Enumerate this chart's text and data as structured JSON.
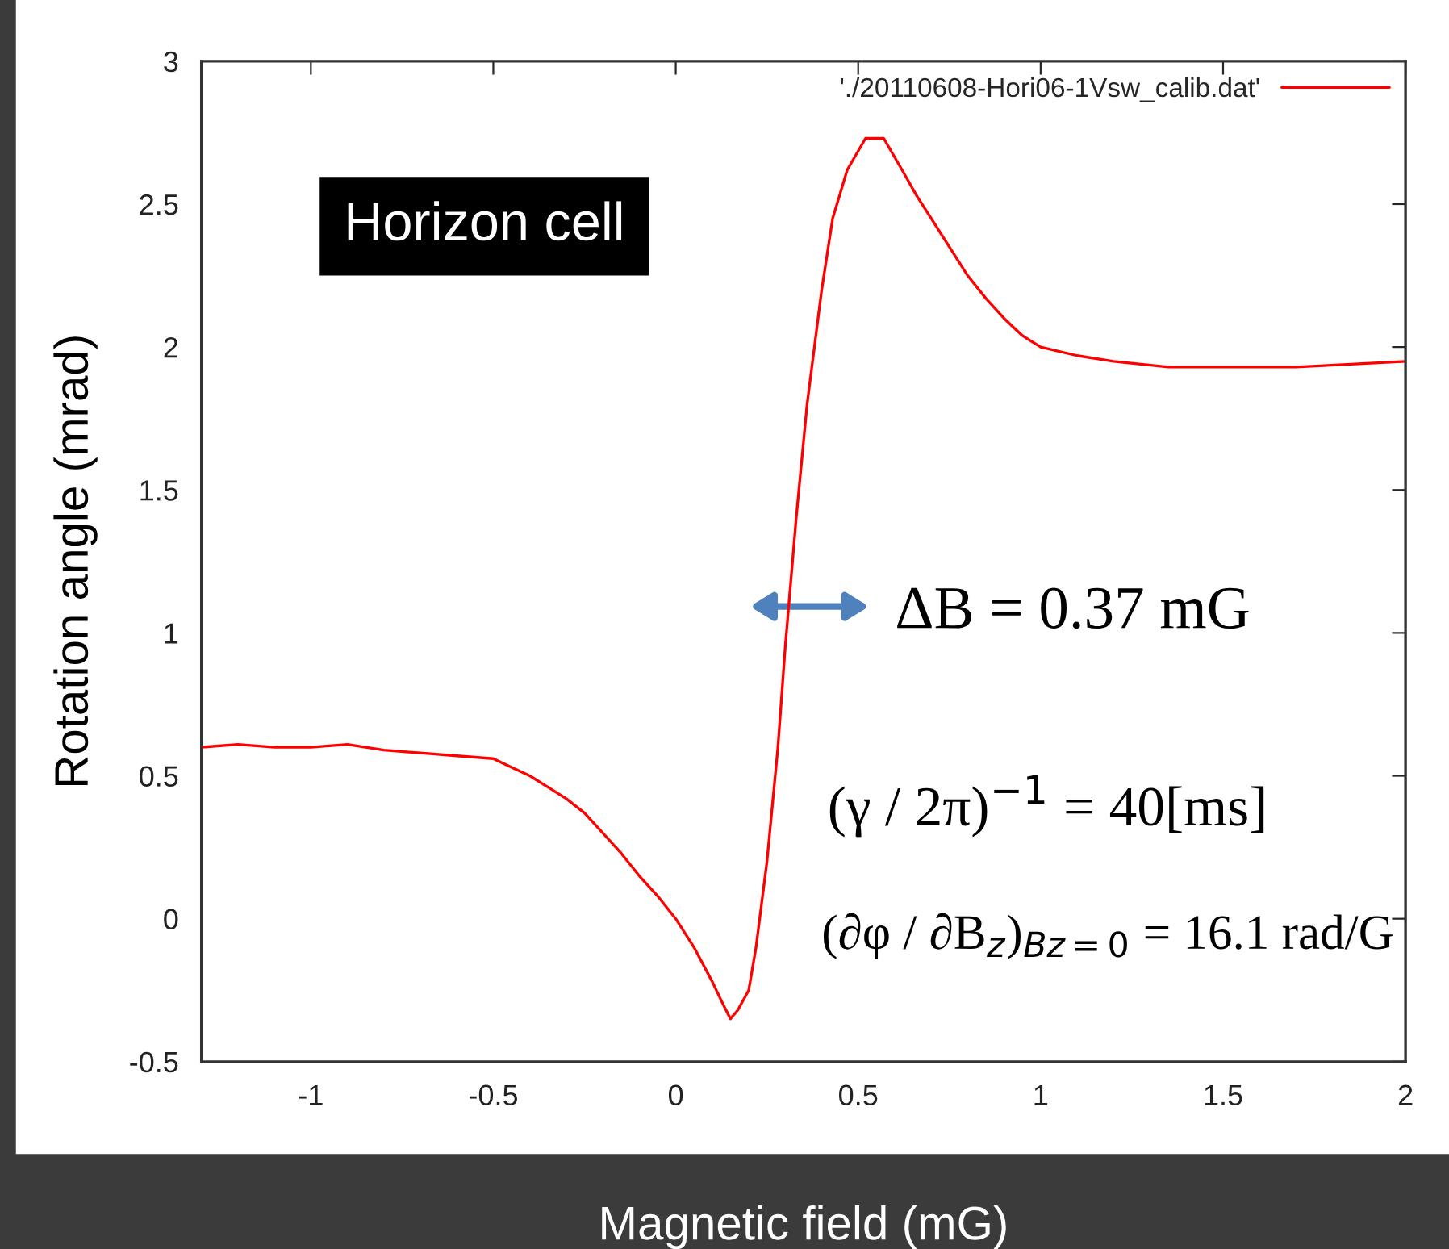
{
  "chart_data": {
    "type": "line",
    "xlabel": "Magnetic field (mG)",
    "ylabel": "Rotation angle (mrad)",
    "x": [
      -1.3,
      -1.2,
      -1.1,
      -1.0,
      -0.9,
      -0.8,
      -0.7,
      -0.6,
      -0.5,
      -0.45,
      -0.4,
      -0.35,
      -0.3,
      -0.25,
      -0.2,
      -0.15,
      -0.1,
      -0.05,
      0.0,
      0.05,
      0.1,
      0.13,
      0.15,
      0.17,
      0.2,
      0.22,
      0.25,
      0.28,
      0.3,
      0.33,
      0.36,
      0.4,
      0.43,
      0.47,
      0.52,
      0.57,
      0.62,
      0.66,
      0.7,
      0.75,
      0.8,
      0.85,
      0.9,
      0.95,
      1.0,
      1.1,
      1.2,
      1.35,
      1.5,
      1.7,
      1.85,
      2.0
    ],
    "series": [
      {
        "name": "'./20110608-Hori06-1Vsw_calib.dat'",
        "color": "#ff0000",
        "values": [
          0.6,
          0.61,
          0.6,
          0.6,
          0.61,
          0.59,
          0.58,
          0.57,
          0.56,
          0.53,
          0.5,
          0.46,
          0.42,
          0.37,
          0.3,
          0.23,
          0.15,
          0.08,
          0.0,
          -0.1,
          -0.22,
          -0.3,
          -0.35,
          -0.32,
          -0.25,
          -0.1,
          0.2,
          0.6,
          0.95,
          1.4,
          1.8,
          2.2,
          2.45,
          2.62,
          2.73,
          2.73,
          2.62,
          2.53,
          2.45,
          2.35,
          2.25,
          2.17,
          2.1,
          2.04,
          2.0,
          1.97,
          1.95,
          1.93,
          1.93,
          1.93,
          1.94,
          1.95
        ]
      }
    ],
    "xlim": [
      -1.3,
      2
    ],
    "ylim": [
      -0.5,
      3
    ],
    "xticks": [
      -1,
      -0.5,
      0,
      0.5,
      1,
      1.5,
      2
    ],
    "yticks": [
      -0.5,
      0,
      0.5,
      1,
      1.5,
      2,
      2.5,
      3
    ],
    "grid": false,
    "legend": "top right",
    "marker": "none",
    "line_style": "solid",
    "annotations": [
      "Horizon cell",
      "ΔB = 0.37 mG",
      "(γ / 2π)$^{−1}$ = 40[ms]",
      "(∂φ / ∂B$_{z}$)$_{Bz=0}$ = 16.1 rad/G"
    ]
  }
}
